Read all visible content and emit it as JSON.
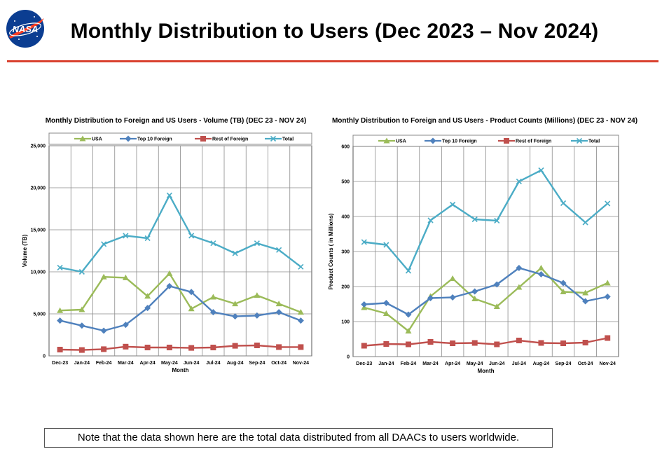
{
  "page": {
    "title": "Monthly Distribution to Users (Dec 2023 – Nov 2024)",
    "logo_text": "NASA",
    "note": "Note that the data shown here are the total data distributed from all DAACs to users worldwide."
  },
  "colors": {
    "accent_rule": "#d9412f",
    "usa": "#9bbb59",
    "top10": "#4f81bd",
    "rest": "#c0504d",
    "total": "#4bacc6"
  },
  "chart_data": [
    {
      "type": "line",
      "title": "Monthly Distribution to Foreign and US Users - Volume  (TB) (DEC 23 - NOV 24)",
      "xlabel": "Month",
      "ylabel": "Volume (TB)",
      "ylim": [
        0,
        25000
      ],
      "yticks": [
        0,
        5000,
        10000,
        15000,
        20000,
        25000
      ],
      "ytick_labels": [
        "0",
        "5,000",
        "10,000",
        "15,000",
        "20,000",
        "25,000"
      ],
      "grid": true,
      "legend_position": "top",
      "categories": [
        "Dec-23",
        "Jan-24",
        "Feb-24",
        "Mar-24",
        "Apr-24",
        "May-24",
        "Jun-24",
        "Jul-24",
        "Aug-24",
        "Sep-24",
        "Oct-24",
        "Nov-24"
      ],
      "series": [
        {
          "name": "USA",
          "marker": "triangle",
          "values": [
            5400,
            5500,
            9400,
            9300,
            7100,
            9800,
            5600,
            7000,
            6200,
            7200,
            6200,
            5200
          ]
        },
        {
          "name": "Top 10 Foreign",
          "marker": "diamond",
          "values": [
            4200,
            3600,
            3000,
            3700,
            5700,
            8300,
            7600,
            5200,
            4700,
            4800,
            5200,
            4200
          ]
        },
        {
          "name": "Rest of Foreign",
          "marker": "square",
          "values": [
            750,
            700,
            800,
            1100,
            1000,
            1000,
            950,
            1000,
            1200,
            1250,
            1050,
            1050
          ]
        },
        {
          "name": "Total",
          "marker": "x",
          "values": [
            10500,
            10000,
            13300,
            14300,
            14000,
            19100,
            14300,
            13400,
            12200,
            13400,
            12600,
            10600
          ]
        }
      ]
    },
    {
      "type": "line",
      "title": "Monthly Distribution to Foreign and US Users - Product Counts (Millions) (DEC 23 - NOV 24)",
      "xlabel": "Month",
      "ylabel": "Product Counts ( in Millions)",
      "ylim": [
        0,
        600
      ],
      "yticks": [
        0,
        100,
        200,
        300,
        400,
        500,
        600
      ],
      "ytick_labels": [
        "0",
        "100",
        "200",
        "300",
        "400",
        "500",
        "600"
      ],
      "grid": true,
      "legend_position": "top",
      "categories": [
        "Dec-23",
        "Jan-24",
        "Feb-24",
        "Mar-24",
        "Apr-24",
        "May-24",
        "Jun-24",
        "Jul-24",
        "Aug-24",
        "Sep-24",
        "Oct-24",
        "Nov-24"
      ],
      "series": [
        {
          "name": "USA",
          "marker": "triangle",
          "values": [
            140,
            123,
            73,
            172,
            223,
            165,
            143,
            198,
            253,
            185,
            182,
            210
          ]
        },
        {
          "name": "Top 10 Foreign",
          "marker": "diamond",
          "values": [
            149,
            153,
            120,
            167,
            169,
            186,
            206,
            253,
            235,
            210,
            158,
            171
          ]
        },
        {
          "name": "Rest of Foreign",
          "marker": "square",
          "values": [
            31,
            36,
            35,
            42,
            38,
            39,
            35,
            46,
            39,
            38,
            40,
            53
          ]
        },
        {
          "name": "Total",
          "marker": "x",
          "values": [
            327,
            319,
            245,
            389,
            434,
            392,
            388,
            500,
            532,
            438,
            383,
            437
          ]
        }
      ]
    }
  ]
}
